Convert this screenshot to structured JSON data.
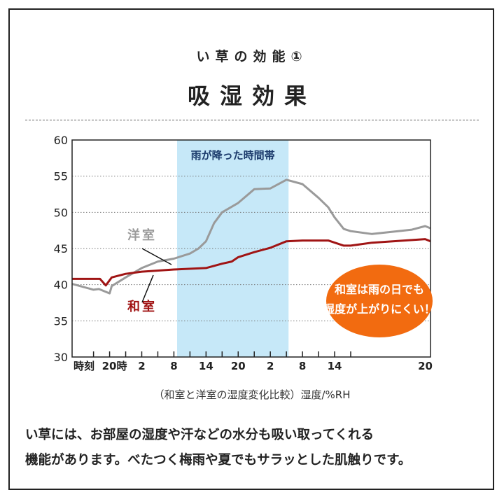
{
  "header": {
    "subtitle": "い草の効能①",
    "title": "吸湿効果"
  },
  "chart_data": {
    "type": "line",
    "title": "",
    "caption": "（和室と洋室の湿度変化比較）湿度/%RH",
    "ylim": [
      30,
      60
    ],
    "y_ticks": [
      30,
      35,
      40,
      45,
      50,
      55,
      60
    ],
    "grid": "horizontal-dotted",
    "x_axis_name": "時刻",
    "x_tick_labels": [
      {
        "x": 0,
        "label": "20時"
      },
      {
        "x": 6,
        "label": "2"
      },
      {
        "x": 12,
        "label": "8"
      },
      {
        "x": 18,
        "label": "14"
      },
      {
        "x": 24,
        "label": "20"
      },
      {
        "x": 30,
        "label": "2"
      },
      {
        "x": 36,
        "label": "8"
      },
      {
        "x": 42,
        "label": "14"
      },
      {
        "x": 48,
        "label": "20"
      }
    ],
    "x_minor_ticks": [
      -3,
      0,
      3,
      6,
      9,
      12,
      15,
      18,
      21,
      24,
      27,
      30,
      33,
      36,
      39,
      42,
      45
    ],
    "xlim": [
      -7,
      48
    ],
    "shaded_region": {
      "label": "雨が降った時間帯",
      "x_start": 12.6,
      "x_end": 33.4,
      "color": "#c6e8f8"
    },
    "series": [
      {
        "name": "洋室",
        "color": "#9a9a9a",
        "points": [
          [
            -7,
            40.1
          ],
          [
            -3,
            39.3
          ],
          [
            -2,
            39.4
          ],
          [
            0,
            38.8
          ],
          [
            0.4,
            39.8
          ],
          [
            3,
            41
          ],
          [
            6,
            42.3
          ],
          [
            9,
            43.2
          ],
          [
            12,
            43.6
          ],
          [
            15,
            44.3
          ],
          [
            16.6,
            45
          ],
          [
            18,
            46
          ],
          [
            19.5,
            48.5
          ],
          [
            21,
            50
          ],
          [
            24,
            51.3
          ],
          [
            27,
            53.2
          ],
          [
            30,
            53.3
          ],
          [
            33,
            54.5
          ],
          [
            36,
            53.9
          ],
          [
            39,
            52
          ],
          [
            40.8,
            50.7
          ],
          [
            42,
            49.3
          ],
          [
            43.7,
            47.7
          ],
          [
            45,
            47.4
          ],
          [
            45.8,
            47.0
          ],
          [
            47.3,
            47.6
          ],
          [
            47.8,
            48.1
          ],
          [
            48,
            47.8
          ]
        ]
      },
      {
        "name": "和室",
        "color": "#a01414",
        "points": [
          [
            -7,
            40.8
          ],
          [
            -1.8,
            40.8
          ],
          [
            -0.7,
            39.9
          ],
          [
            0.4,
            41
          ],
          [
            3,
            41.5
          ],
          [
            6,
            41.8
          ],
          [
            12,
            42.1
          ],
          [
            18,
            42.3
          ],
          [
            21,
            42.9
          ],
          [
            22.8,
            43.2
          ],
          [
            24,
            43.8
          ],
          [
            27,
            44.5
          ],
          [
            30,
            45.1
          ],
          [
            33,
            46
          ],
          [
            36,
            46.1
          ],
          [
            40.8,
            46.1
          ],
          [
            43.7,
            45.4
          ],
          [
            45,
            45.4
          ],
          [
            45.8,
            45.8
          ],
          [
            47.8,
            46.3
          ],
          [
            48,
            46
          ]
        ]
      }
    ],
    "callout": {
      "lines": [
        "和室は雨の日でも",
        "湿度が上がりにくい！"
      ],
      "color": "#f26b10"
    }
  },
  "body_text": [
    "い草には、お部屋の湿度や汗などの水分も吸い取ってくれる",
    "機能があります。べたつく梅雨や夏でもサラッとした肌触りです。"
  ]
}
